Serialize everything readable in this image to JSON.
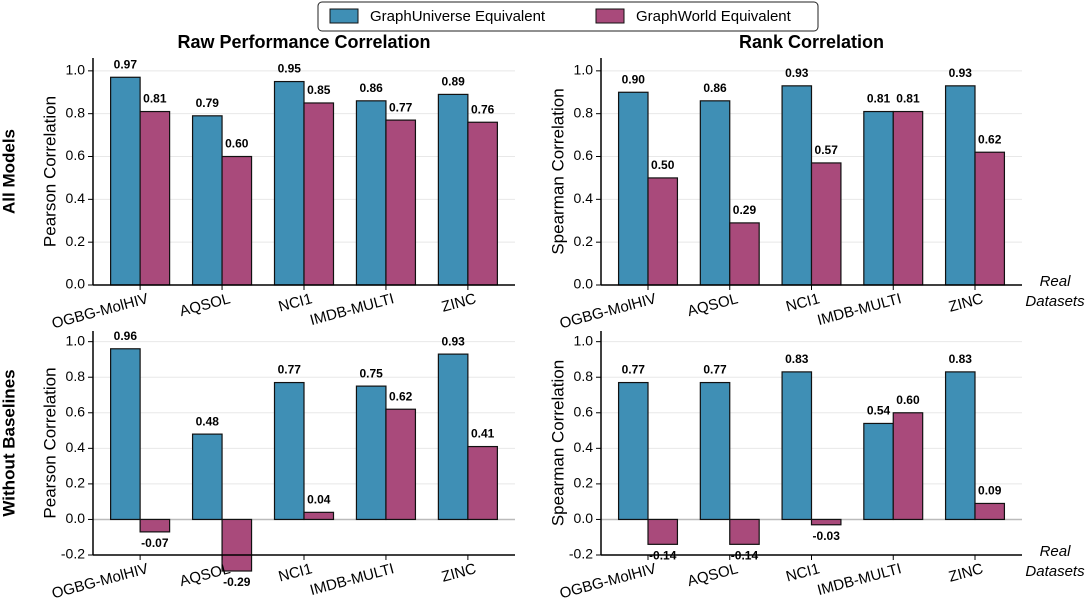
{
  "chart_data": [
    {
      "type": "bar",
      "title": "Raw Performance Correlation",
      "row_label": "All Models",
      "ylabel": "Pearson Correlation",
      "categories": [
        "OGBG-MolHIV",
        "AQSOL",
        "NCI1",
        "IMDB-MULTI",
        "ZINC"
      ],
      "series": [
        {
          "name": "GraphUniverse Equivalent",
          "color": "#3f8fb5",
          "values": [
            0.97,
            0.79,
            0.95,
            0.86,
            0.89
          ],
          "value_labels": [
            "0.97",
            "0.79",
            "0.95",
            "0.86",
            "0.89"
          ]
        },
        {
          "name": "GraphWorld Equivalent",
          "color": "#a94a7b",
          "values": [
            0.81,
            0.6,
            0.85,
            0.77,
            0.76
          ],
          "value_labels": [
            "0.81",
            "0.60",
            "0.85",
            "0.77",
            "0.76"
          ]
        }
      ],
      "ylim": [
        0,
        1.06
      ],
      "yticks": [
        {
          "value": 0,
          "label": "0.0"
        },
        0.2,
        0.4,
        0.6,
        0.8,
        {
          "value": 1,
          "label": "1.0"
        }
      ],
      "grid": true
    },
    {
      "type": "bar",
      "title": "Rank Correlation",
      "ylabel": "Spearman Correlation",
      "annotation": [
        "Real",
        "Datasets"
      ],
      "categories": [
        "OGBG-MolHIV",
        "AQSOL",
        "NCI1",
        "IMDB-MULTI",
        "ZINC"
      ],
      "series": [
        {
          "color": "#3f8fb5",
          "values": [
            0.9,
            0.86,
            0.93,
            0.81,
            0.93
          ],
          "value_labels": [
            "0.90",
            "0.86",
            "0.93",
            "0.81",
            "0.93"
          ]
        },
        {
          "color": "#a94a7b",
          "values": [
            0.5,
            0.29,
            0.57,
            0.81,
            0.62
          ],
          "value_labels": [
            "0.50",
            "0.29",
            "0.57",
            "0.81",
            "0.62"
          ]
        }
      ],
      "ylim": [
        0,
        1.06
      ],
      "yticks": [
        {
          "value": 0,
          "label": "0.0"
        },
        0.2,
        0.4,
        0.6,
        0.8,
        {
          "value": 1,
          "label": "1.0"
        }
      ],
      "grid": true
    },
    {
      "type": "bar",
      "row_label": "Without Baselines",
      "ylabel": "Pearson Correlation",
      "categories": [
        "OGBG-MolHIV",
        "AQSOL",
        "NCI1",
        "IMDB-MULTI",
        "ZINC"
      ],
      "series": [
        {
          "color": "#3f8fb5",
          "values": [
            0.96,
            0.48,
            0.77,
            0.75,
            0.93
          ],
          "value_labels": [
            "0.96",
            "0.48",
            "0.77",
            "0.75",
            "0.93"
          ]
        },
        {
          "color": "#a94a7b",
          "values": [
            -0.07,
            -0.29,
            0.04,
            0.62,
            0.41
          ],
          "value_labels": [
            "-0.07",
            "-0.29",
            "0.04",
            "0.62",
            "0.41"
          ]
        }
      ],
      "ylim": [
        -0.2,
        1.06
      ],
      "yticks": [
        -0.2,
        {
          "value": 0,
          "label": "0.0"
        },
        0.2,
        0.4,
        0.6,
        0.8,
        {
          "value": 1,
          "label": "1.0"
        }
      ],
      "grid": true
    },
    {
      "type": "bar",
      "ylabel": "Spearman Correlation",
      "annotation": [
        "Real",
        "Datasets"
      ],
      "categories": [
        "OGBG-MolHIV",
        "AQSOL",
        "NCI1",
        "IMDB-MULTI",
        "ZINC"
      ],
      "series": [
        {
          "color": "#3f8fb5",
          "values": [
            0.77,
            0.77,
            0.83,
            0.54,
            0.83
          ],
          "value_labels": [
            "0.77",
            "0.77",
            "0.83",
            "0.54",
            "0.83"
          ]
        },
        {
          "color": "#a94a7b",
          "values": [
            -0.14,
            -0.14,
            -0.03,
            0.6,
            0.09
          ],
          "value_labels": [
            "-0.14",
            "-0.14",
            "-0.03",
            "0.60",
            "0.09"
          ]
        }
      ],
      "ylim": [
        -0.2,
        1.06
      ],
      "yticks": [
        -0.2,
        {
          "value": 0,
          "label": "0.0"
        },
        0.2,
        0.4,
        0.6,
        0.8,
        {
          "value": 1,
          "label": "1.0"
        }
      ],
      "grid": true
    }
  ]
}
